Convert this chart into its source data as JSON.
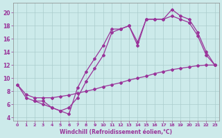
{
  "line1_x": [
    0,
    1,
    2,
    3,
    4,
    5,
    6,
    7,
    8,
    9,
    10,
    11,
    12,
    13,
    14,
    15,
    16,
    17,
    18,
    19,
    20,
    21,
    22,
    23
  ],
  "line1_y": [
    9.0,
    7.0,
    6.5,
    6.5,
    5.5,
    5.0,
    4.5,
    8.5,
    11.0,
    13.0,
    15.0,
    17.5,
    17.5,
    18.0,
    15.0,
    19.0,
    19.0,
    19.0,
    20.5,
    19.5,
    19.0,
    17.0,
    14.0,
    12.0
  ],
  "line2_x": [
    2,
    3,
    4,
    5,
    6,
    7,
    8,
    9,
    10,
    11,
    12,
    13,
    14,
    15,
    16,
    17,
    18,
    19,
    20,
    21,
    22,
    23
  ],
  "line2_y": [
    6.5,
    6.0,
    5.5,
    5.0,
    5.5,
    7.0,
    9.5,
    11.5,
    13.5,
    17.0,
    17.5,
    18.0,
    15.5,
    19.0,
    19.0,
    19.0,
    19.5,
    19.0,
    18.5,
    16.5,
    13.5,
    12.0
  ],
  "line3_x": [
    0,
    1,
    2,
    3,
    4,
    5,
    6,
    7,
    8,
    9,
    10,
    11,
    12,
    13,
    14,
    15,
    16,
    17,
    18,
    19,
    20,
    21,
    22,
    23
  ],
  "line3_y": [
    9.0,
    7.5,
    7.0,
    7.0,
    7.0,
    7.2,
    7.4,
    7.7,
    8.0,
    8.3,
    8.7,
    9.0,
    9.3,
    9.7,
    10.0,
    10.3,
    10.7,
    11.0,
    11.3,
    11.5,
    11.7,
    11.9,
    12.0,
    12.0
  ],
  "color": "#993399",
  "bg_color": "#cceaea",
  "grid_color": "#aacccc",
  "xlabel": "Windchill (Refroidissement éolien,°C)",
  "xlim": [
    -0.5,
    23.5
  ],
  "ylim": [
    3.5,
    21.5
  ],
  "xticks": [
    0,
    1,
    2,
    3,
    4,
    5,
    6,
    7,
    8,
    9,
    10,
    11,
    12,
    13,
    14,
    15,
    16,
    17,
    18,
    19,
    20,
    21,
    22,
    23
  ],
  "yticks": [
    4,
    6,
    8,
    10,
    12,
    14,
    16,
    18,
    20
  ]
}
